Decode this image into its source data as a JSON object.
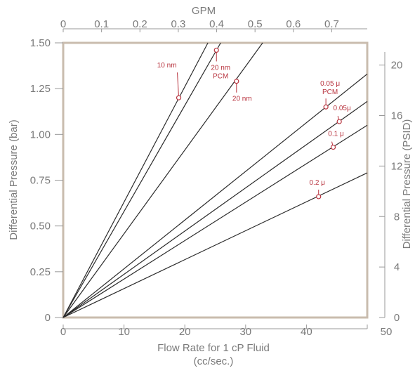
{
  "colors": {
    "frame": "#c9bcae",
    "axis_line": "#999999",
    "series_line": "#2b2b2b",
    "annotation": "#b8343f",
    "text": "#7a7a7a"
  },
  "chart_data": {
    "type": "line",
    "title": "",
    "grid": false,
    "legend": "none",
    "x_axis_bottom": {
      "label_line1": "Flow Rate for 1 cP Fluid",
      "label_line2": "(cc/sec.)",
      "range": [
        0,
        50
      ],
      "ticks": [
        0,
        10,
        20,
        30,
        40,
        50
      ],
      "tick_labels": [
        "0",
        "10",
        "20",
        "30",
        "40",
        "50"
      ]
    },
    "x_axis_top": {
      "label": "GPM",
      "range": [
        0,
        0.7925
      ],
      "ticks": [
        0,
        0.1,
        0.2,
        0.3,
        0.4,
        0.5,
        0.6,
        0.7
      ],
      "tick_labels": [
        "0",
        "0.1",
        "0.2",
        "0.3",
        "0.4",
        "0.5",
        "0.6",
        "0.7"
      ]
    },
    "y_axis_left": {
      "label": "Differential Pressure (bar)",
      "range": [
        0,
        1.5
      ],
      "ticks": [
        0,
        0.25,
        0.5,
        0.75,
        1.0,
        1.25,
        1.5
      ],
      "tick_labels": [
        "0",
        "0.25",
        "0.50",
        "0.75",
        "1.00",
        "1.25",
        "1.50"
      ]
    },
    "y_axis_right": {
      "label": "Differential Pressure (PSID)",
      "range": [
        0,
        21.76
      ],
      "ticks": [
        0,
        4,
        8,
        12,
        16,
        20
      ],
      "tick_labels": [
        "0",
        "4",
        "8",
        "12",
        "16",
        "20"
      ]
    },
    "series": [
      {
        "label_lines": [
          "10 nm"
        ],
        "x": [
          0,
          23.8
        ],
        "y": [
          0,
          1.5
        ],
        "marker": [
          19.0,
          1.2
        ]
      },
      {
        "label_lines": [
          "20 nm",
          "PCM"
        ],
        "x": [
          0,
          25.9
        ],
        "y": [
          0,
          1.5
        ],
        "marker": [
          25.2,
          1.46
        ]
      },
      {
        "label_lines": [
          "20 nm"
        ],
        "x": [
          0,
          32.8
        ],
        "y": [
          0,
          1.5
        ],
        "marker": [
          28.5,
          1.29
        ]
      },
      {
        "label_lines": [
          "0.05 μ",
          "PCM"
        ],
        "x": [
          0,
          50
        ],
        "y": [
          0,
          1.33
        ],
        "marker": [
          43.2,
          1.15
        ]
      },
      {
        "label_lines": [
          "0.05μ"
        ],
        "x": [
          0,
          50
        ],
        "y": [
          0,
          1.18
        ],
        "marker": [
          45.4,
          1.07
        ]
      },
      {
        "label_lines": [
          "0.1 μ"
        ],
        "x": [
          0,
          50
        ],
        "y": [
          0,
          1.05
        ],
        "marker": [
          44.4,
          0.93
        ]
      },
      {
        "label_lines": [
          "0.2 μ"
        ],
        "x": [
          0,
          50
        ],
        "y": [
          0,
          0.79
        ],
        "marker": [
          42.0,
          0.66
        ]
      }
    ]
  }
}
